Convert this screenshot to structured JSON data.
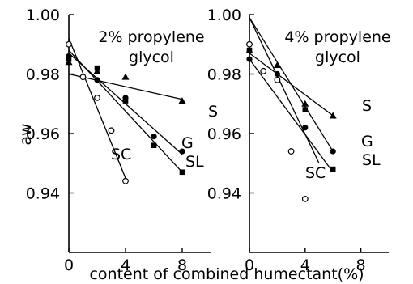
{
  "chart_data": [
    {
      "type": "scatter",
      "title_lines": [
        "2% propylene",
        "glycol"
      ],
      "ylabel": "aw",
      "xlabel": "content of combined humectant(%)",
      "xlim": [
        0,
        10
      ],
      "ylim": [
        0.92,
        1.0
      ],
      "xticks": [
        "0",
        "4",
        "8"
      ],
      "yticks": [
        "1.00",
        "0.98",
        "0.96",
        "0.94"
      ],
      "series": [
        {
          "name": "S",
          "marker": "triangle",
          "points": [
            [
              0,
              0.984
            ],
            [
              2,
              0.981
            ],
            [
              4,
              0.979
            ],
            [
              8,
              0.971
            ]
          ],
          "fit": [
            [
              0,
              0.98
            ],
            [
              8,
              0.9715
            ]
          ]
        },
        {
          "name": "G",
          "marker": "filled-circle",
          "points": [
            [
              0,
              0.986
            ],
            [
              2,
              0.978
            ],
            [
              4,
              0.972
            ],
            [
              6,
              0.959
            ],
            [
              8,
              0.954
            ]
          ],
          "fit": [
            [
              0,
              0.987
            ],
            [
              8,
              0.953
            ]
          ]
        },
        {
          "name": "SL",
          "marker": "filled-square",
          "points": [
            [
              0,
              0.985
            ],
            [
              2,
              0.982
            ],
            [
              4,
              0.971
            ],
            [
              6,
              0.956
            ],
            [
              8,
              0.947
            ]
          ],
          "fit": [
            [
              0,
              0.988
            ],
            [
              8,
              0.947
            ]
          ]
        },
        {
          "name": "SC",
          "marker": "open-circle",
          "points": [
            [
              0,
              0.99
            ],
            [
              1,
              0.979
            ],
            [
              2,
              0.972
            ],
            [
              3,
              0.961
            ],
            [
              4,
              0.944
            ]
          ],
          "fit": [
            [
              0,
              0.992
            ],
            [
              4,
              0.945
            ]
          ]
        }
      ]
    },
    {
      "type": "scatter",
      "title_lines": [
        "4% propylene",
        "glycol"
      ],
      "ylabel": "",
      "xlabel": "",
      "xlim": [
        0,
        10
      ],
      "ylim": [
        0.92,
        1.0
      ],
      "xticks": [
        "0",
        "4",
        "8"
      ],
      "yticks": [
        "1.00",
        "0.98",
        "0.96",
        "0.94"
      ],
      "series": [
        {
          "name": "S",
          "marker": "triangle",
          "points": [
            [
              0,
              0.988
            ],
            [
              2,
              0.983
            ],
            [
              4,
              0.97
            ],
            [
              6,
              0.966
            ]
          ],
          "fit": [
            [
              0,
              0.987
            ],
            [
              6,
              0.966
            ]
          ]
        },
        {
          "name": "G",
          "marker": "filled-circle",
          "points": [
            [
              0,
              0.985
            ],
            [
              2,
              0.98
            ],
            [
              4,
              0.962
            ],
            [
              6,
              0.954
            ]
          ],
          "fit": [
            [
              0,
              0.999
            ],
            [
              6,
              0.954
            ]
          ]
        },
        {
          "name": "SL",
          "marker": "filled-square",
          "points": [
            [
              0,
              0.988
            ],
            [
              2,
              0.978
            ],
            [
              4,
              0.968
            ],
            [
              6,
              0.948
            ]
          ],
          "fit": [
            [
              0,
              0.985
            ],
            [
              6,
              0.947
            ]
          ]
        },
        {
          "name": "SC",
          "marker": "open-circle",
          "points": [
            [
              0,
              0.99
            ],
            [
              1,
              0.981
            ],
            [
              2,
              0.978
            ],
            [
              3,
              0.954
            ],
            [
              4,
              0.938
            ]
          ],
          "fit": [
            [
              0,
              0.999
            ],
            [
              5,
              0.95
            ]
          ]
        }
      ]
    }
  ]
}
